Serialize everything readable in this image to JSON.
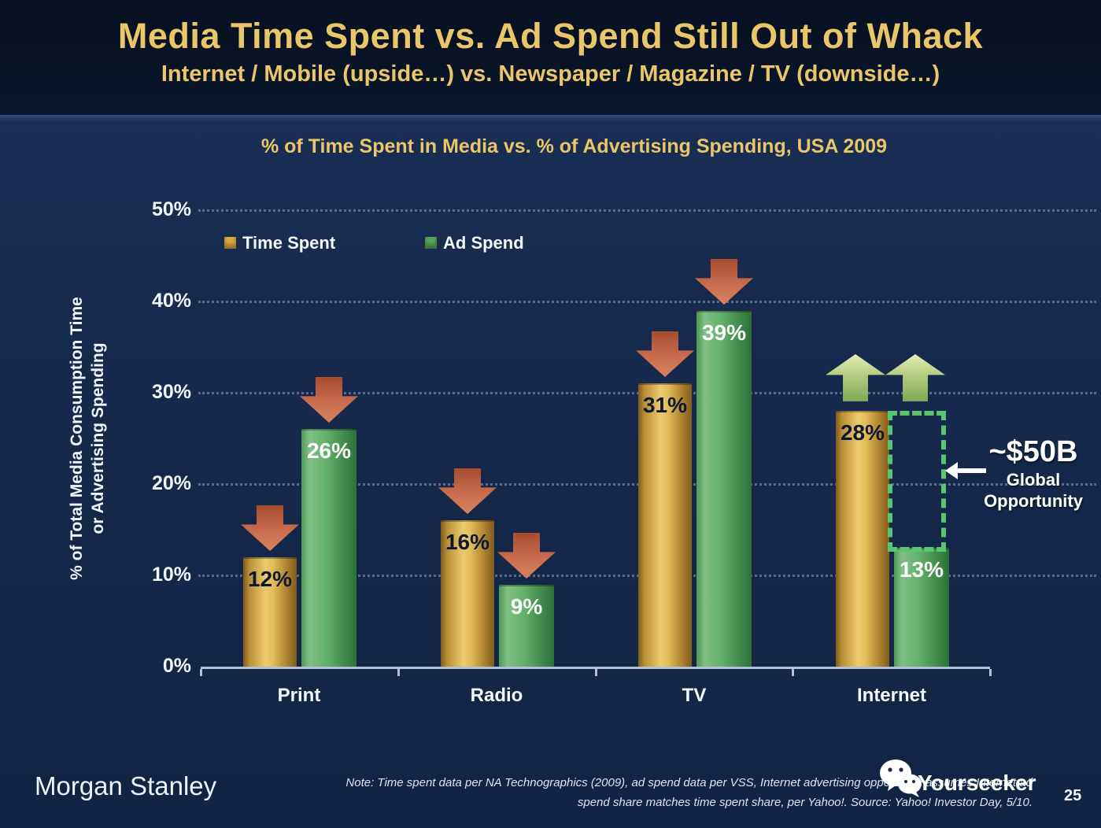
{
  "header": {
    "title": "Media Time Spent vs. Ad Spend Still Out of Whack",
    "subtitle": "Internet / Mobile (upside…) vs. Newspaper / Magazine / TV (downside…)"
  },
  "chart_data": {
    "type": "bar",
    "title": "% of Time Spent in Media vs. % of Advertising Spending, USA 2009",
    "categories": [
      "Print",
      "Radio",
      "TV",
      "Internet"
    ],
    "series": [
      {
        "name": "Time Spent",
        "values": [
          12,
          16,
          31,
          28
        ],
        "color": "#dcab42"
      },
      {
        "name": "Ad Spend",
        "values": [
          26,
          9,
          39,
          13
        ],
        "color": "#58a55f"
      }
    ],
    "trends": [
      "down",
      "down",
      "down",
      "up"
    ],
    "ylabel_line1": "% of Total Media Consumption Time",
    "ylabel_line2": "or Advertising Spending",
    "y_ticks": [
      "0%",
      "10%",
      "20%",
      "30%",
      "40%",
      "50%"
    ],
    "ylim": [
      0,
      50
    ],
    "grid": "dotted-horizontal",
    "legend_position": "top-left-inside",
    "annotation": {
      "value": "~$50B",
      "label1": "Global",
      "label2": "Opportunity",
      "applies_to": "Internet gap between Time Spent 28% and Ad Spend 13%"
    }
  },
  "colors": {
    "background": "#16294c",
    "header_background": "#0a1428",
    "accent_gold_text": "#eac66a",
    "bar_gold": "#dcab42",
    "bar_green": "#58a55f",
    "down_arrow": "#c46749",
    "up_arrow": "#b8ce83",
    "opportunity_dash": "#58c670",
    "axis": "#b4c0d6"
  },
  "footer": {
    "brand": "Morgan Stanley",
    "note_line1": "Note: Time spent data per NA Technographics (2009), ad spend data per VSS, Internet advertising opportunity assumes Internet ad",
    "note_line2": "spend share matches time spent share, per Yahoo!. Source: Yahoo! Investor Day, 5/10.",
    "watermark": "Yourseeker",
    "page": "25"
  }
}
